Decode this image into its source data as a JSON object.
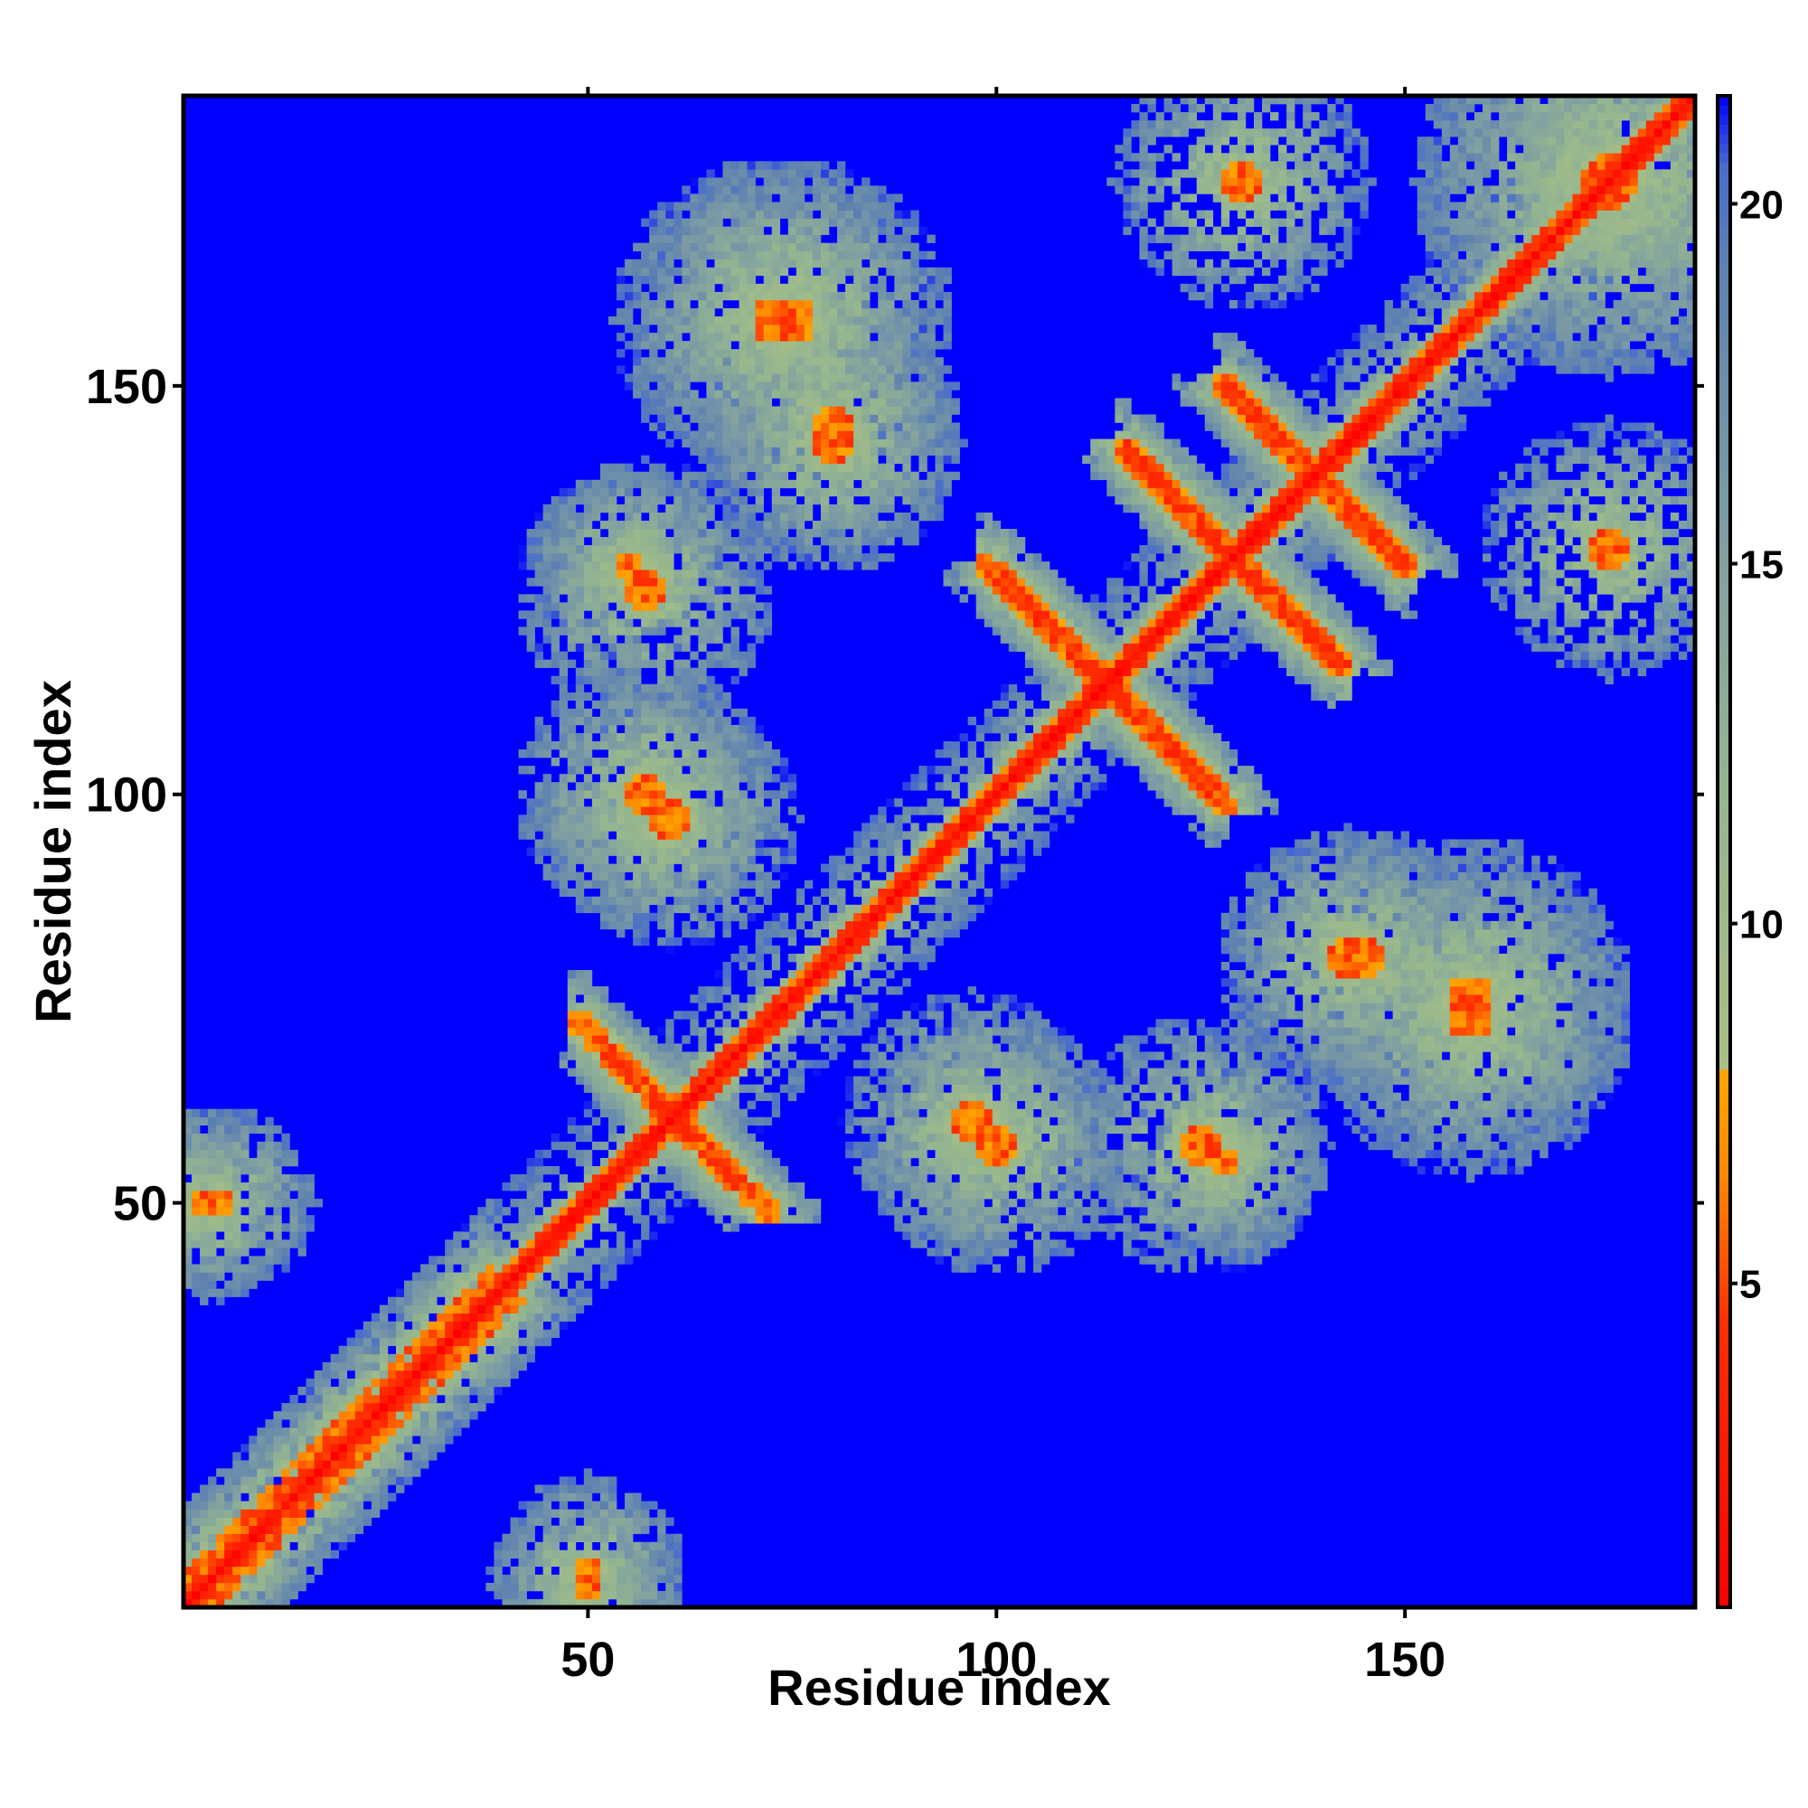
{
  "chart_data": {
    "type": "heatmap",
    "title": "",
    "xlabel": "Residue index",
    "ylabel": "Residue index",
    "xlim": [
      1,
      185
    ],
    "ylim": [
      1,
      185
    ],
    "x_ticks": [
      50,
      100,
      150
    ],
    "y_ticks": [
      50,
      100,
      150
    ],
    "colorbar": {
      "ticks": [
        5,
        10,
        15,
        20
      ],
      "range": [
        0.5,
        21.5
      ],
      "stops": [
        {
          "value": 0.5,
          "color": "#ff0000"
        },
        {
          "value": 4.5,
          "color": "#ff3000"
        },
        {
          "value": 6.5,
          "color": "#ff8800"
        },
        {
          "value": 8.0,
          "color": "#ffa500"
        },
        {
          "value": 8.01,
          "color": "#a8bf85"
        },
        {
          "value": 12.0,
          "color": "#94b590"
        },
        {
          "value": 16.0,
          "color": "#7a9aa5"
        },
        {
          "value": 19.0,
          "color": "#5f82b0"
        },
        {
          "value": 20.5,
          "color": "#4a6ecb"
        },
        {
          "value": 21.5,
          "color": "#0000ff"
        }
      ]
    },
    "background_value": 21.5,
    "background_color": "#0000ff",
    "grid": false,
    "legend": "colorbar-right",
    "features": [
      {
        "kind": "diagonal",
        "from": 1,
        "to": 185
      },
      {
        "kind": "parallel_band",
        "from": 1,
        "to": 38,
        "offset": 3
      },
      {
        "kind": "antiparallel",
        "a_start": 53,
        "a_end": 72,
        "b_start": 68,
        "b_end": 53
      },
      {
        "kind": "antiparallel",
        "a_start": 100,
        "a_end": 128,
        "b_start": 127,
        "b_end": 100
      },
      {
        "kind": "antiparallel",
        "a_start": 128,
        "a_end": 150,
        "b_start": 150,
        "b_end": 128
      },
      {
        "kind": "antiparallel",
        "a_start": 116,
        "a_end": 142,
        "b_start": 142,
        "b_end": 116
      },
      {
        "kind": "contact_patch",
        "x": 57,
        "y": 100,
        "size": 4
      },
      {
        "kind": "contact_patch",
        "x": 97,
        "y": 60,
        "size": 4
      },
      {
        "kind": "contact_patch",
        "x": 75,
        "y": 158,
        "size": 5
      },
      {
        "kind": "contact_patch",
        "x": 55,
        "y": 128,
        "size": 3
      },
      {
        "kind": "contact_patch",
        "x": 125,
        "y": 57,
        "size": 4
      },
      {
        "kind": "contact_patch",
        "x": 158,
        "y": 73,
        "size": 5
      },
      {
        "kind": "contact_patch",
        "x": 143,
        "y": 80,
        "size": 4
      },
      {
        "kind": "contact_patch",
        "x": 80,
        "y": 145,
        "size": 4
      },
      {
        "kind": "contact_patch",
        "x": 50,
        "y": 5,
        "size": 3
      },
      {
        "kind": "contact_patch",
        "x": 3,
        "y": 50,
        "size": 3
      },
      {
        "kind": "contact_patch",
        "x": 175,
        "y": 175,
        "size": 6
      },
      {
        "kind": "contact_patch",
        "x": 175,
        "y": 130,
        "size": 4
      }
    ]
  }
}
